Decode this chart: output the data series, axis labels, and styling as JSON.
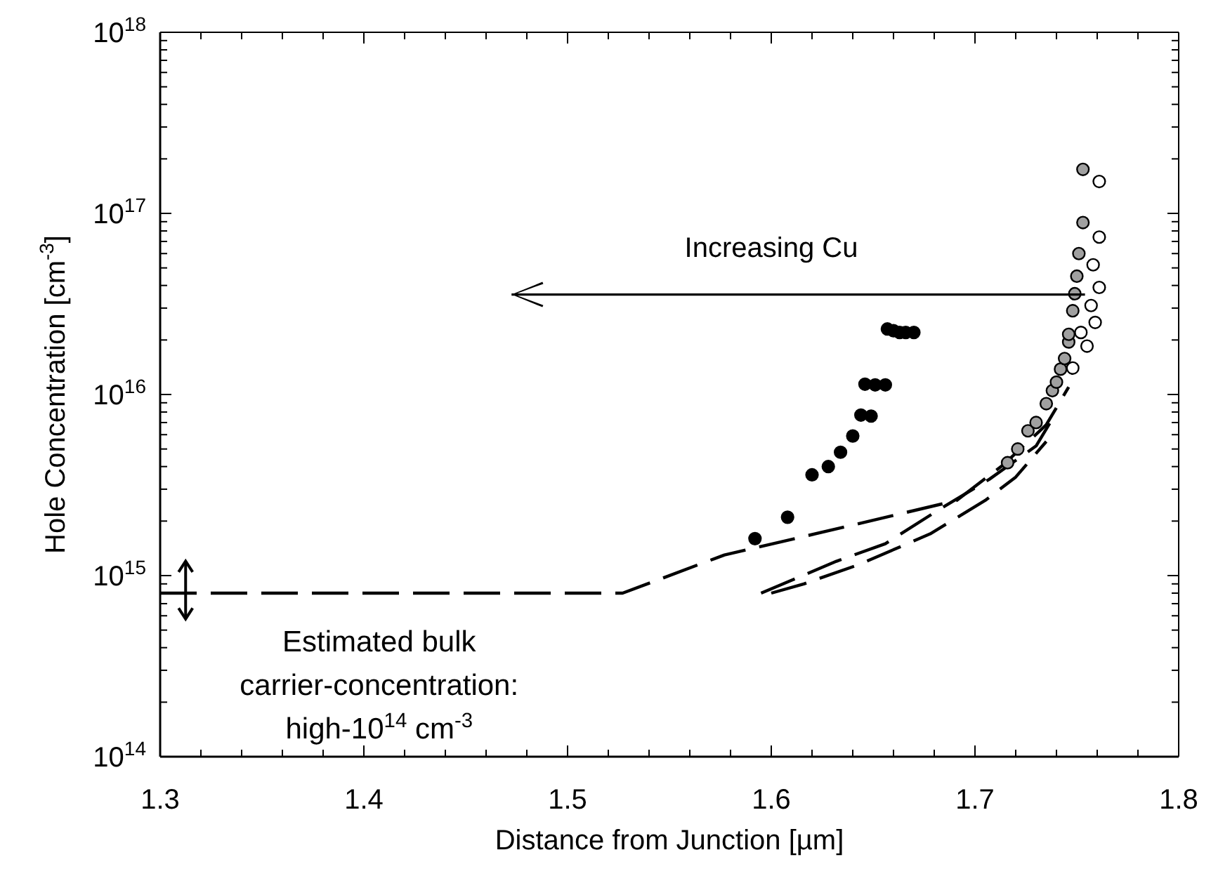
{
  "chart_data": {
    "type": "scatter",
    "xlabel": "Distance from Junction [µm]",
    "ylabel": "Hole Concentration [cm$^{-3}$]",
    "log": "y",
    "grid": false,
    "legend": false,
    "marker": "circle",
    "xlim": [
      1.3,
      1.8
    ],
    "ylim": [
      100000000000000.0,
      1e+18
    ],
    "xticks": [
      1.3,
      {
        "value": 1.32,
        "label": null
      },
      {
        "value": 1.34,
        "label": null
      },
      {
        "value": 1.36,
        "label": null
      },
      {
        "value": 1.38,
        "label": null
      },
      1.4,
      {
        "value": 1.42,
        "label": null
      },
      {
        "value": 1.44,
        "label": null
      },
      {
        "value": 1.46,
        "label": null
      },
      {
        "value": 1.48,
        "label": null
      },
      1.5,
      {
        "value": 1.52,
        "label": null
      },
      {
        "value": 1.54,
        "label": null
      },
      {
        "value": 1.56,
        "label": null
      },
      {
        "value": 1.58,
        "label": null
      },
      1.6,
      {
        "value": 1.62,
        "label": null
      },
      {
        "value": 1.64,
        "label": null
      },
      {
        "value": 1.66,
        "label": null
      },
      {
        "value": 1.68,
        "label": null
      },
      1.7,
      {
        "value": 1.72,
        "label": null
      },
      {
        "value": 1.74,
        "label": null
      },
      {
        "value": 1.76,
        "label": null
      },
      {
        "value": 1.78,
        "label": null
      },
      1.8
    ],
    "yticks": [
      {
        "value": 100000000000000.0,
        "label": "10$^{14}$"
      },
      {
        "value": 200000000000000.0,
        "label": null
      },
      {
        "value": 300000000000000.0,
        "label": null
      },
      {
        "value": 400000000000000.0,
        "label": null
      },
      {
        "value": 500000000000000.0,
        "label": null
      },
      {
        "value": 600000000000000.0,
        "label": null
      },
      {
        "value": 700000000000000.0,
        "label": null
      },
      {
        "value": 800000000000000.0,
        "label": null
      },
      {
        "value": 900000000000000.0,
        "label": null
      },
      {
        "value": 1000000000000000.0,
        "label": "10$^{15}$"
      },
      {
        "value": 2000000000000000.0,
        "label": null
      },
      {
        "value": 3000000000000000.0,
        "label": null
      },
      {
        "value": 4000000000000000.0,
        "label": null
      },
      {
        "value": 5000000000000000.0,
        "label": null
      },
      {
        "value": 6000000000000000.0,
        "label": null
      },
      {
        "value": 7000000000000000.0,
        "label": null
      },
      {
        "value": 8000000000000000.0,
        "label": null
      },
      {
        "value": 9000000000000000.0,
        "label": null
      },
      {
        "value": 1e+16,
        "label": "10$^{16}$"
      },
      {
        "value": 2e+16,
        "label": null
      },
      {
        "value": 3e+16,
        "label": null
      },
      {
        "value": 4e+16,
        "label": null
      },
      {
        "value": 5e+16,
        "label": null
      },
      {
        "value": 6e+16,
        "label": null
      },
      {
        "value": 7e+16,
        "label": null
      },
      {
        "value": 8e+16,
        "label": null
      },
      {
        "value": 9e+16,
        "label": null
      },
      {
        "value": 1e+17,
        "label": "10$^{17}$"
      },
      {
        "value": 2e+17,
        "label": null
      },
      {
        "value": 3e+17,
        "label": null
      },
      {
        "value": 4e+17,
        "label": null
      },
      {
        "value": 5e+17,
        "label": null
      },
      {
        "value": 6e+17,
        "label": null
      },
      {
        "value": 7e+17,
        "label": null
      },
      {
        "value": 8e+17,
        "label": null
      },
      {
        "value": 9e+17,
        "label": null
      },
      {
        "value": 1e+18,
        "label": "10$^{18}$"
      }
    ],
    "series": [
      {
        "type": "line",
        "color": "#000000",
        "line_style": "dashed",
        "marker": "none",
        "x": [
          1.3,
          1.527,
          1.577,
          1.64,
          1.691,
          1.714,
          1.735,
          1.746
        ],
        "values": [
          800000000000000.0,
          800000000000000.0,
          1300000000000000.0,
          1900000000000000.0,
          2600000000000000.0,
          4100000000000000.0,
          6800000000000000.0,
          1.1e+16
        ]
      },
      {
        "type": "line",
        "color": "#000000",
        "line_style": "dashed",
        "marker": "none",
        "x": [
          1.595,
          1.632,
          1.656,
          1.682,
          1.707,
          1.73,
          1.74
        ],
        "values": [
          800000000000000.0,
          1200000000000000.0,
          1500000000000000.0,
          2300000000000000.0,
          3400000000000000.0,
          5200000000000000.0,
          8000000000000000.0
        ]
      },
      {
        "type": "line",
        "color": "#000000",
        "line_style": "dashed",
        "marker": "none",
        "x": [
          1.6,
          1.616,
          1.643,
          1.678,
          1.705,
          1.72,
          1.735
        ],
        "values": [
          800000000000000.0,
          900000000000000.0,
          1150000000000000.0,
          1700000000000000.0,
          2600000000000000.0,
          3500000000000000.0,
          5500000000000000.0
        ]
      },
      {
        "color": "#000000",
        "x": [
          1.592,
          1.608,
          1.62,
          1.628,
          1.634,
          1.64,
          1.644,
          1.649,
          1.646,
          1.651,
          1.656,
          1.657,
          1.66,
          1.663,
          1.666,
          1.67
        ],
        "values": [
          1600000000000000.0,
          2100000000000000.0,
          3600000000000000.0,
          4000000000000000.0,
          4800000000000000.0,
          5900000000000000.0,
          7700000000000000.0,
          7600000000000000.0,
          1.14e+16,
          1.13e+16,
          1.13e+16,
          2.3e+16,
          2.25e+16,
          2.2e+16,
          2.2e+16,
          2.2e+16
        ]
      },
      {
        "color": "#a0a0a0",
        "x": [
          1.716,
          1.721,
          1.726,
          1.73,
          1.735,
          1.738,
          1.74,
          1.742,
          1.744,
          1.746,
          1.746,
          1.748,
          1.749,
          1.75,
          1.751,
          1.753,
          1.753
        ],
        "values": [
          4200000000000000.0,
          5000000000000000.0,
          6300000000000000.0,
          7000000000000000.0,
          8900000000000000.0,
          1.05e+16,
          1.17e+16,
          1.38e+16,
          1.58e+16,
          1.95e+16,
          2.15e+16,
          2.9e+16,
          3.6e+16,
          4.5e+16,
          6e+16,
          8.9e+16,
          1.75e+17
        ]
      },
      {
        "color": "#ffffff",
        "x": [
          1.761,
          1.761,
          1.758,
          1.761,
          1.757,
          1.759,
          1.752,
          1.755,
          1.748
        ],
        "values": [
          1.5e+17,
          7.4e+16,
          5.2e+16,
          3.9e+16,
          3.1e+16,
          2.5e+16,
          2.2e+16,
          1.85e+16,
          1.4e+16
        ]
      }
    ],
    "annotations": [
      "Increasing Cu",
      "Estimated bulk\ncarrier-concentration:\nhigh-10$^{14}$ cm$^{-3}$"
    ]
  }
}
